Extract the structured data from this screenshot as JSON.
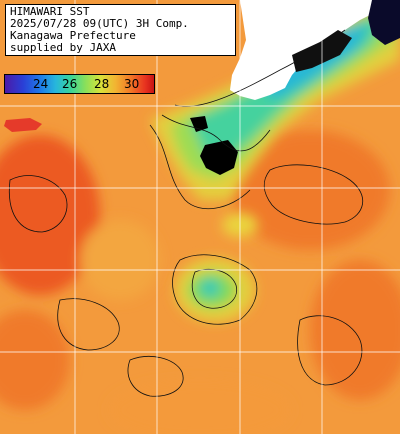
{
  "header": {
    "line1": "HIMAWARI SST",
    "line2": "2025/07/28 09(UTC) 3H Comp.",
    "line3": "Kanagawa Prefecture",
    "line4": "supplied by JAXA"
  },
  "legend": {
    "labels": [
      "24",
      "26",
      "28",
      "30"
    ],
    "unit": ""
  },
  "colors": {
    "land": "#ffffff",
    "no_data": "#000000",
    "warm_30": "#e8461e",
    "warm_29": "#f0772e",
    "mid_28": "#f49a3a",
    "cool_27": "#e7d33a",
    "cool_26": "#7fda5a",
    "cold_25": "#2fc9b8",
    "cold_24": "#2a7bd8",
    "grid": "#ffffff"
  }
}
